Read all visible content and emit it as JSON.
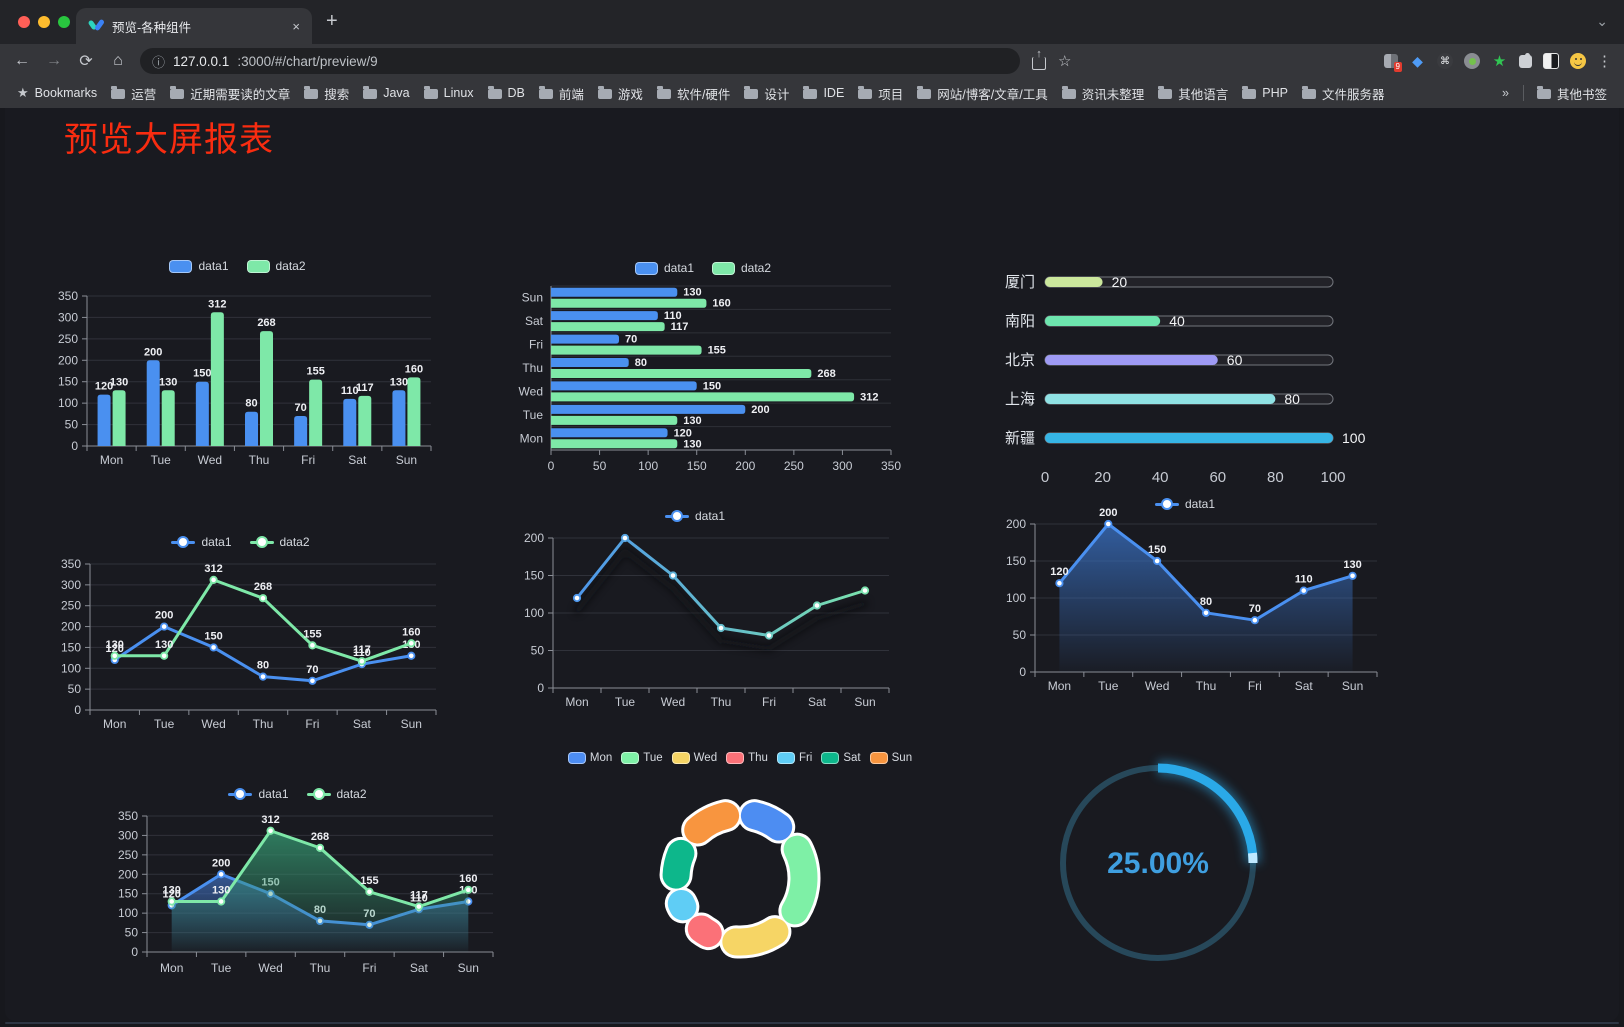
{
  "browser": {
    "tab_title": "预览-各种组件",
    "url_host": "127.0.0.1",
    "url_path": ":3000/#/chart/preview/9",
    "bookmarks_button": "Bookmarks",
    "bookmark_folders": [
      "运营",
      "近期需要读的文章",
      "搜索",
      "Java",
      "Linux",
      "DB",
      "前端",
      "游戏",
      "软件/硬件",
      "设计",
      "IDE",
      "项目",
      "网站/博客/文章/工具",
      "资讯未整理",
      "其他语言",
      "PHP",
      "文件服务器"
    ],
    "overflow_chevron": "»",
    "other_bookmarks": "其他书签",
    "extension_badge": "9"
  },
  "page": {
    "title": "预览大屏报表",
    "title_color": "#f92c10",
    "background": "#191a20"
  },
  "chart_data": [
    {
      "id": "bar_vertical",
      "type": "bar",
      "categories": [
        "Mon",
        "Tue",
        "Wed",
        "Thu",
        "Fri",
        "Sat",
        "Sun"
      ],
      "series": [
        {
          "name": "data1",
          "color": "#4a90f0",
          "values": [
            120,
            200,
            150,
            80,
            70,
            110,
            130
          ]
        },
        {
          "name": "data2",
          "color": "#7ee8a8",
          "values": [
            130,
            130,
            312,
            268,
            155,
            117,
            160
          ]
        }
      ],
      "ylim": [
        0,
        350
      ],
      "ytick": 50,
      "legend_position": "top",
      "grid": true,
      "point_labels": true
    },
    {
      "id": "bar_horizontal",
      "type": "bar-horizontal",
      "categories": [
        "Mon",
        "Tue",
        "Wed",
        "Thu",
        "Fri",
        "Sat",
        "Sun"
      ],
      "category_display_order_top_to_bottom": [
        "Sun",
        "Sat",
        "Fri",
        "Thu",
        "Wed",
        "Tue",
        "Mon"
      ],
      "series": [
        {
          "name": "data1",
          "color": "#4a90f0",
          "values": [
            120,
            200,
            150,
            80,
            70,
            110,
            130
          ]
        },
        {
          "name": "data2",
          "color": "#7ee8a8",
          "values": [
            130,
            130,
            312,
            268,
            155,
            117,
            160
          ]
        }
      ],
      "xlim": [
        0,
        350
      ],
      "xtick": 50,
      "legend_position": "top",
      "point_labels": true
    },
    {
      "id": "progress",
      "type": "bar-horizontal-progress",
      "xlim": [
        0,
        100
      ],
      "xticks": [
        0,
        20,
        40,
        60,
        80,
        100
      ],
      "rows": [
        {
          "label": "厦门",
          "value": 20,
          "color": "#cbe79c"
        },
        {
          "label": "南阳",
          "value": 40,
          "color": "#6de5ae"
        },
        {
          "label": "北京",
          "value": 60,
          "color": "#9e9af4"
        },
        {
          "label": "上海",
          "value": 80,
          "color": "#90e2e4"
        },
        {
          "label": "新疆",
          "value": 100,
          "color": "#36b5e5"
        }
      ]
    },
    {
      "id": "line_double",
      "type": "line",
      "categories": [
        "Mon",
        "Tue",
        "Wed",
        "Thu",
        "Fri",
        "Sat",
        "Sun"
      ],
      "series": [
        {
          "name": "data1",
          "color": "#4a90f0",
          "values": [
            120,
            200,
            150,
            80,
            70,
            110,
            130
          ]
        },
        {
          "name": "data2",
          "color": "#7ee8a8",
          "values": [
            130,
            130,
            312,
            268,
            155,
            117,
            160
          ]
        }
      ],
      "ylim": [
        0,
        350
      ],
      "ytick": 50,
      "legend_position": "top",
      "point_labels": true
    },
    {
      "id": "line_gradient",
      "type": "line",
      "categories": [
        "Mon",
        "Tue",
        "Wed",
        "Thu",
        "Fri",
        "Sat",
        "Sun"
      ],
      "series": [
        {
          "name": "data1",
          "gradient": [
            "#4a90f0",
            "#7ee8a8"
          ],
          "values": [
            120,
            200,
            150,
            80,
            70,
            110,
            130
          ]
        }
      ],
      "ylim": [
        0,
        200
      ],
      "ytick": 50,
      "legend_position": "top",
      "point_labels": false,
      "line_shadow": true
    },
    {
      "id": "area_single",
      "type": "area",
      "categories": [
        "Mon",
        "Tue",
        "Wed",
        "Thu",
        "Fri",
        "Sat",
        "Sun"
      ],
      "series": [
        {
          "name": "data1",
          "color": "#4a90f0",
          "values": [
            120,
            200,
            150,
            80,
            70,
            110,
            130
          ],
          "area": [
            "rgba(56,110,190,0.80)",
            "rgba(56,110,190,0.03)"
          ]
        }
      ],
      "ylim": [
        0,
        200
      ],
      "ytick": 50,
      "legend_position": "top",
      "point_labels": true
    },
    {
      "id": "area_double",
      "type": "area",
      "categories": [
        "Mon",
        "Tue",
        "Wed",
        "Thu",
        "Fri",
        "Sat",
        "Sun"
      ],
      "series": [
        {
          "name": "data1",
          "color": "#4a90f0",
          "values": [
            120,
            200,
            150,
            80,
            70,
            110,
            130
          ],
          "area": [
            "rgba(62,108,184,0.75)",
            "rgba(62,108,184,0.02)"
          ]
        },
        {
          "name": "data2",
          "color": "#7ee8a8",
          "values": [
            130,
            130,
            312,
            268,
            155,
            117,
            160
          ],
          "area": [
            "rgba(52,148,110,0.80)",
            "rgba(52,148,110,0.03)"
          ]
        }
      ],
      "ylim": [
        0,
        350
      ],
      "ytick": 50,
      "legend_position": "top",
      "point_labels": true
    },
    {
      "id": "pie",
      "type": "pie",
      "donut": true,
      "categories": [
        "Mon",
        "Tue",
        "Wed",
        "Thu",
        "Fri",
        "Sat",
        "Sun"
      ],
      "values": [
        120,
        200,
        150,
        80,
        70,
        110,
        130
      ],
      "colors": [
        "#4d8df2",
        "#7ef0a6",
        "#f6d565",
        "#fb7178",
        "#5fcdf5",
        "#0db78b",
        "#f8953f"
      ],
      "legend_position": "top"
    },
    {
      "id": "gauge",
      "type": "gauge",
      "value": 25,
      "label": "25.00%",
      "color": "#2aa9e8",
      "cap_color": "#bfe9ff",
      "track_color": "#27485a",
      "text_color": "#3f9fe0"
    }
  ]
}
